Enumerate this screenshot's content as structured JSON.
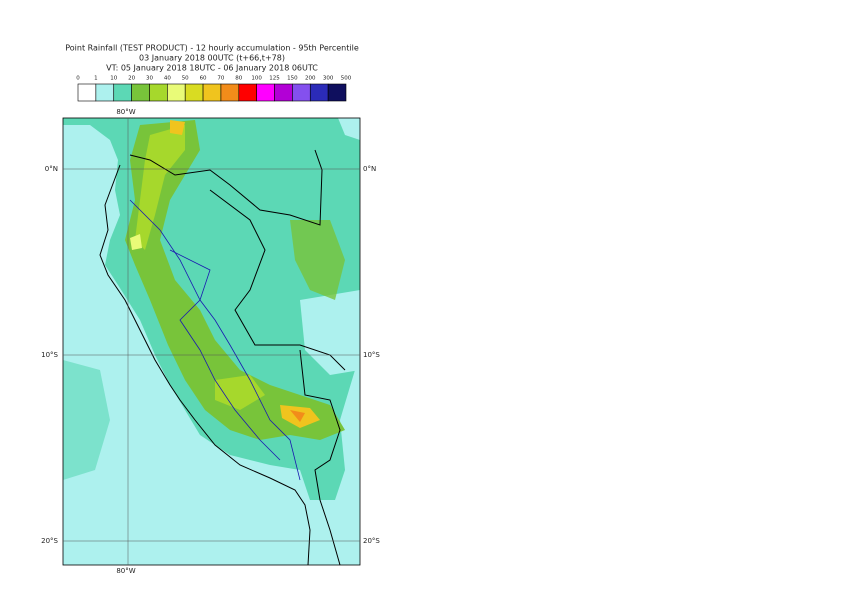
{
  "header": {
    "lines": [
      "Point Rainfall (TEST PRODUCT) - 12 hourly accumulation - 95th Percentile",
      "03 January 2018 00UTC (t+66,t+78)",
      "VT: 05 January 2018 18UTC - 06 January 2018 06UTC"
    ]
  },
  "legend": {
    "labels": [
      "0",
      "1",
      "10",
      "20",
      "30",
      "40",
      "50",
      "60",
      "70",
      "80",
      "100",
      "125",
      "150",
      "200",
      "300",
      "500"
    ],
    "colors": [
      "#ffffff",
      "#adf1ee",
      "#5cd8b5",
      "#78c43a",
      "#a6d82c",
      "#e9fb78",
      "#d9dc22",
      "#f0c41e",
      "#f28c1a",
      "#ff0000",
      "#ff00ff",
      "#b200d6",
      "#8450ee",
      "#2b2bb8",
      "#0f0f5e"
    ]
  },
  "map": {
    "lon_label": "80°W",
    "lat_labels": [
      "0°N",
      "10°S",
      "20°S"
    ]
  }
}
